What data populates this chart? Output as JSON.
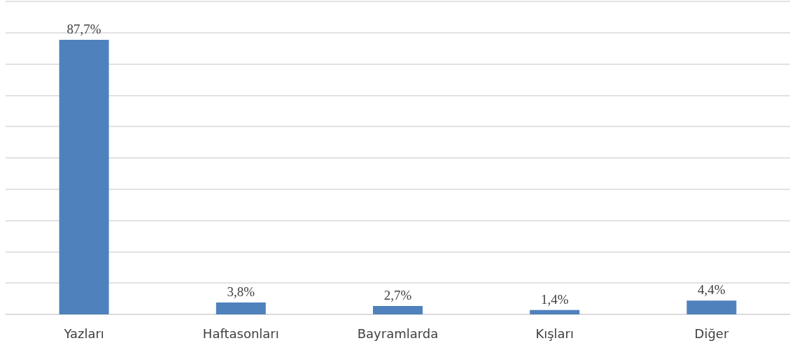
{
  "chart_data": {
    "type": "bar",
    "categories": [
      "Yazları",
      "Haftasonları",
      "Bayramlarda",
      "Kışları",
      "Diğer"
    ],
    "values": [
      87.7,
      3.8,
      2.7,
      1.4,
      4.4
    ],
    "value_labels": [
      "87,7%",
      "3,8%",
      "2,7%",
      "1,4%",
      "4,4%"
    ],
    "color": "#4f81bd",
    "ylim": [
      0,
      100
    ],
    "yticks": [
      {
        "value": 0,
        "label": null
      },
      {
        "value": 10,
        "label": null
      },
      {
        "value": 20,
        "label": null
      },
      {
        "value": 30,
        "label": null
      },
      {
        "value": 40,
        "label": null
      },
      {
        "value": 50,
        "label": null
      },
      {
        "value": 60,
        "label": null
      },
      {
        "value": 70,
        "label": null
      },
      {
        "value": 80,
        "label": null
      },
      {
        "value": 90,
        "label": null
      },
      {
        "value": 100,
        "label": null
      }
    ],
    "grid": "y",
    "tick_labels": "x"
  }
}
